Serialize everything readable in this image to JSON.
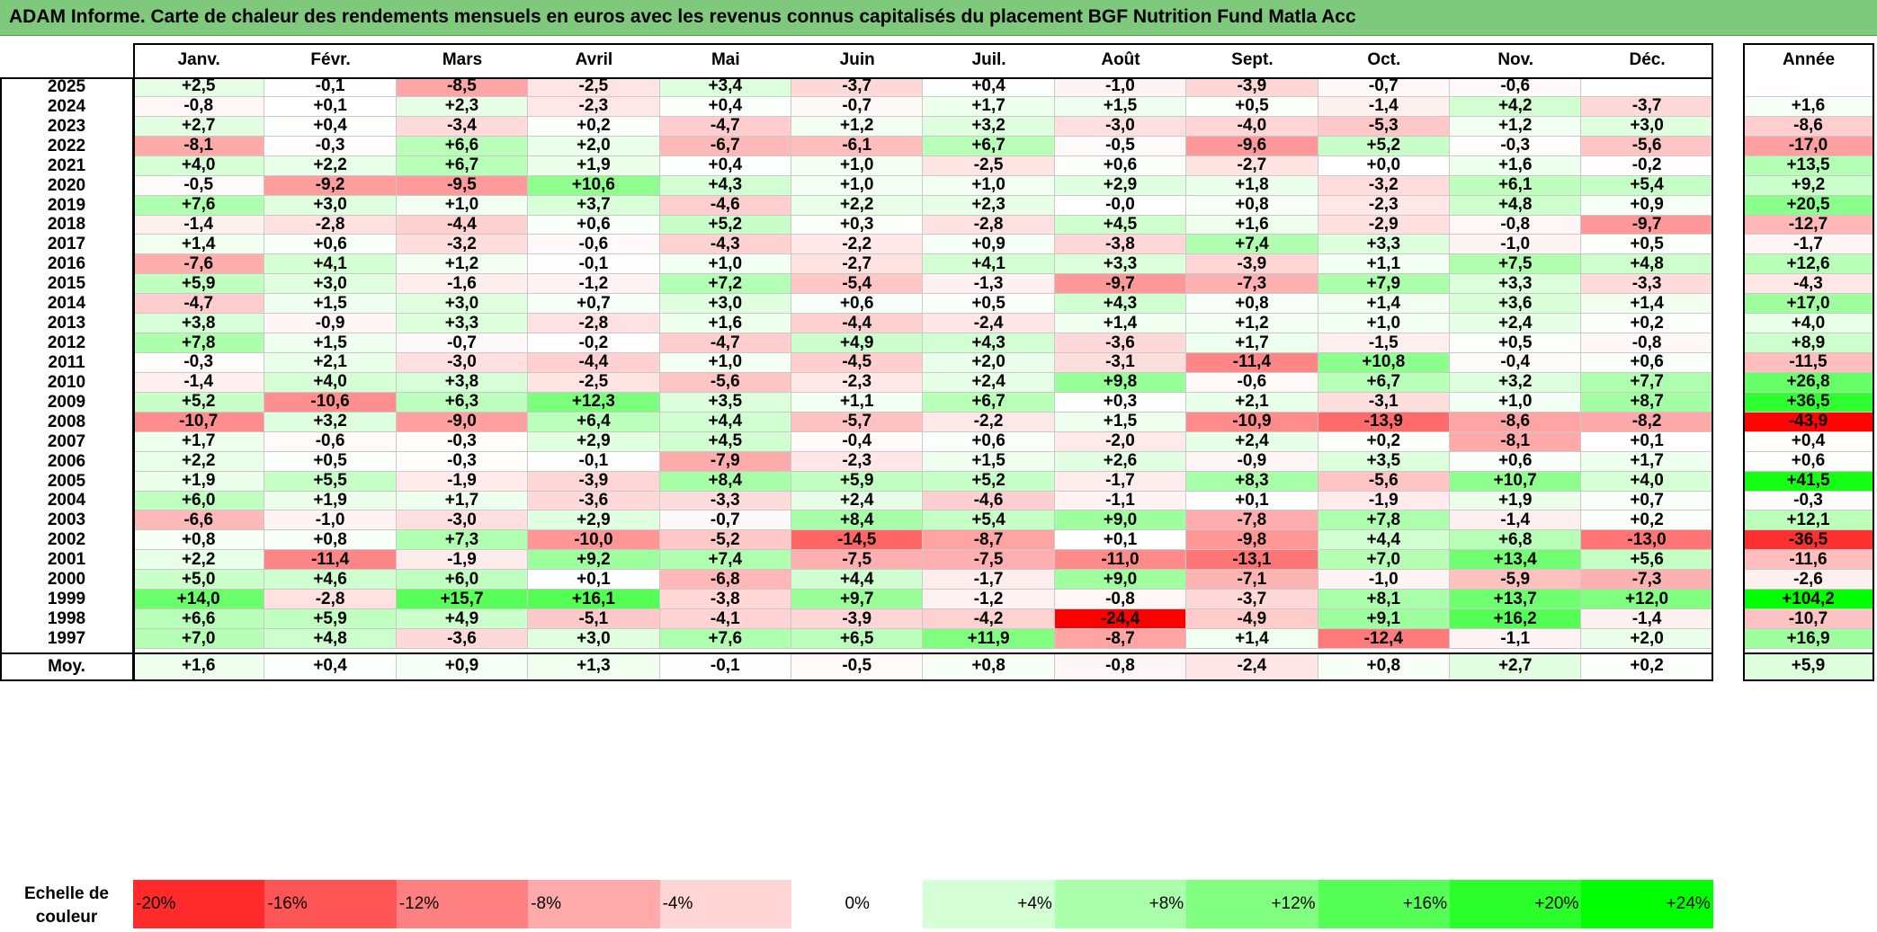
{
  "title": "ADAM Informe. Carte de chaleur des rendements mensuels en euros avec les revenus connus capitalisés du placement BGF Nutrition Fund Matla Acc",
  "columns": [
    "Janv.",
    "Févr.",
    "Mars",
    "Avril",
    "Mai",
    "Juin",
    "Juil.",
    "Août",
    "Sept.",
    "Oct.",
    "Nov.",
    "Déc."
  ],
  "annual_header": "Année",
  "average_label": "Moy.",
  "scale_label": "Echelle de couleur",
  "colors": {
    "title_bar": "#7fc97c",
    "negative_max": "#ff0000",
    "positive_max": "#00ff00",
    "neutral": "#ffffff"
  },
  "color_scale": [
    "-20%",
    "-16%",
    "-12%",
    "-8%",
    "-4%",
    "0%",
    "+4%",
    "+8%",
    "+12%",
    "+16%",
    "+20%",
    "+24%"
  ],
  "chart_data": {
    "type": "heatmap",
    "title": "ADAM Informe. Carte de chaleur des rendements mensuels en euros avec les revenus connus capitalisés du placement BGF Nutrition Fund Matla Acc",
    "rows": [
      {
        "year": "2025",
        "months": [
          "+2,5",
          "-0,1",
          "-8,5",
          "-2,5",
          "+3,4",
          "-3,7",
          "+0,4",
          "-1,0",
          "-3,9",
          "-0,7",
          "-0,6",
          ""
        ],
        "annual": ""
      },
      {
        "year": "2024",
        "months": [
          "-0,8",
          "+0,1",
          "+2,3",
          "-2,3",
          "+0,4",
          "-0,7",
          "+1,7",
          "+1,5",
          "+0,5",
          "-1,4",
          "+4,2",
          "-3,7"
        ],
        "annual": "+1,6"
      },
      {
        "year": "2023",
        "months": [
          "+2,7",
          "+0,4",
          "-3,4",
          "+0,2",
          "-4,7",
          "+1,2",
          "+3,2",
          "-3,0",
          "-4,0",
          "-5,3",
          "+1,2",
          "+3,0"
        ],
        "annual": "-8,6"
      },
      {
        "year": "2022",
        "months": [
          "-8,1",
          "-0,3",
          "+6,6",
          "+2,0",
          "-6,7",
          "-6,1",
          "+6,7",
          "-0,5",
          "-9,6",
          "+5,2",
          "-0,3",
          "-5,6"
        ],
        "annual": "-17,0"
      },
      {
        "year": "2021",
        "months": [
          "+4,0",
          "+2,2",
          "+6,7",
          "+1,9",
          "+0,4",
          "+1,0",
          "-2,5",
          "+0,6",
          "-2,7",
          "+0,0",
          "+1,6",
          "-0,2"
        ],
        "annual": "+13,5"
      },
      {
        "year": "2020",
        "months": [
          "-0,5",
          "-9,2",
          "-9,5",
          "+10,6",
          "+4,3",
          "+1,0",
          "+1,0",
          "+2,9",
          "+1,8",
          "-3,2",
          "+6,1",
          "+5,4"
        ],
        "annual": "+9,2"
      },
      {
        "year": "2019",
        "months": [
          "+7,6",
          "+3,0",
          "+1,0",
          "+3,7",
          "-4,6",
          "+2,2",
          "+2,3",
          "-0,0",
          "+0,8",
          "-2,3",
          "+4,8",
          "+0,9"
        ],
        "annual": "+20,5"
      },
      {
        "year": "2018",
        "months": [
          "-1,4",
          "-2,8",
          "-4,4",
          "+0,6",
          "+5,2",
          "+0,3",
          "-2,8",
          "+4,5",
          "+1,6",
          "-2,9",
          "-0,8",
          "-9,7"
        ],
        "annual": "-12,7"
      },
      {
        "year": "2017",
        "months": [
          "+1,4",
          "+0,6",
          "-3,2",
          "-0,6",
          "-4,3",
          "-2,2",
          "+0,9",
          "-3,8",
          "+7,4",
          "+3,3",
          "-1,0",
          "+0,5"
        ],
        "annual": "-1,7"
      },
      {
        "year": "2016",
        "months": [
          "-7,6",
          "+4,1",
          "+1,2",
          "-0,1",
          "+1,0",
          "-2,7",
          "+4,1",
          "+3,3",
          "-3,9",
          "+1,1",
          "+7,5",
          "+4,8"
        ],
        "annual": "+12,6"
      },
      {
        "year": "2015",
        "months": [
          "+5,9",
          "+3,0",
          "-1,6",
          "-1,2",
          "+7,2",
          "-5,4",
          "-1,3",
          "-9,7",
          "-7,3",
          "+7,9",
          "+3,3",
          "-3,3"
        ],
        "annual": "-4,3"
      },
      {
        "year": "2014",
        "months": [
          "-4,7",
          "+1,5",
          "+3,0",
          "+0,7",
          "+3,0",
          "+0,6",
          "+0,5",
          "+4,3",
          "+0,8",
          "+1,4",
          "+3,6",
          "+1,4"
        ],
        "annual": "+17,0"
      },
      {
        "year": "2013",
        "months": [
          "+3,8",
          "-0,9",
          "+3,3",
          "-2,8",
          "+1,6",
          "-4,4",
          "-2,4",
          "+1,4",
          "+1,2",
          "+1,0",
          "+2,4",
          "+0,2"
        ],
        "annual": "+4,0"
      },
      {
        "year": "2012",
        "months": [
          "+7,8",
          "+1,5",
          "-0,7",
          "-0,2",
          "-4,7",
          "+4,9",
          "+4,3",
          "-3,6",
          "+1,7",
          "-1,5",
          "+0,5",
          "-0,8"
        ],
        "annual": "+8,9"
      },
      {
        "year": "2011",
        "months": [
          "-0,3",
          "+2,1",
          "-3,0",
          "-4,4",
          "+1,0",
          "-4,5",
          "+2,0",
          "-3,1",
          "-11,4",
          "+10,8",
          "-0,4",
          "+0,6"
        ],
        "annual": "-11,5"
      },
      {
        "year": "2010",
        "months": [
          "-1,4",
          "+4,0",
          "+3,8",
          "-2,5",
          "-5,6",
          "-2,3",
          "+2,4",
          "+9,8",
          "-0,6",
          "+6,7",
          "+3,2",
          "+7,7"
        ],
        "annual": "+26,8"
      },
      {
        "year": "2009",
        "months": [
          "+5,2",
          "-10,6",
          "+6,3",
          "+12,3",
          "+3,5",
          "+1,1",
          "+6,7",
          "+0,3",
          "+2,1",
          "-3,1",
          "+1,0",
          "+8,7"
        ],
        "annual": "+36,5"
      },
      {
        "year": "2008",
        "months": [
          "-10,7",
          "+3,2",
          "-9,0",
          "+6,4",
          "+4,4",
          "-5,7",
          "-2,2",
          "+1,5",
          "-10,9",
          "-13,9",
          "-8,6",
          "-8,2"
        ],
        "annual": "-43,9"
      },
      {
        "year": "2007",
        "months": [
          "+1,7",
          "-0,6",
          "-0,3",
          "+2,9",
          "+4,5",
          "-0,4",
          "+0,6",
          "-2,0",
          "+2,4",
          "+0,2",
          "-8,1",
          "+0,1"
        ],
        "annual": "+0,4"
      },
      {
        "year": "2006",
        "months": [
          "+2,2",
          "+0,5",
          "-0,3",
          "-0,1",
          "-7,9",
          "-2,3",
          "+1,5",
          "+2,6",
          "-0,9",
          "+3,5",
          "+0,6",
          "+1,7"
        ],
        "annual": "+0,6"
      },
      {
        "year": "2005",
        "months": [
          "+1,9",
          "+5,5",
          "-1,9",
          "-3,9",
          "+8,4",
          "+5,9",
          "+5,2",
          "-1,7",
          "+8,3",
          "-5,6",
          "+10,7",
          "+4,0"
        ],
        "annual": "+41,5"
      },
      {
        "year": "2004",
        "months": [
          "+6,0",
          "+1,9",
          "+1,7",
          "-3,6",
          "-3,3",
          "+2,4",
          "-4,6",
          "-1,1",
          "+0,1",
          "-1,9",
          "+1,9",
          "+0,7"
        ],
        "annual": "-0,3"
      },
      {
        "year": "2003",
        "months": [
          "-6,6",
          "-1,0",
          "-3,0",
          "+2,9",
          "-0,7",
          "+8,4",
          "+5,4",
          "+9,0",
          "-7,8",
          "+7,8",
          "-1,4",
          "+0,2"
        ],
        "annual": "+12,1"
      },
      {
        "year": "2002",
        "months": [
          "+0,8",
          "+0,8",
          "+7,3",
          "-10,0",
          "-5,2",
          "-14,5",
          "-8,7",
          "+0,1",
          "-9,8",
          "+4,4",
          "+6,8",
          "-13,0"
        ],
        "annual": "-36,5"
      },
      {
        "year": "2001",
        "months": [
          "+2,2",
          "-11,4",
          "-1,9",
          "+9,2",
          "+7,4",
          "-7,5",
          "-7,5",
          "-11,0",
          "-13,1",
          "+7,0",
          "+13,4",
          "+5,6"
        ],
        "annual": "-11,6"
      },
      {
        "year": "2000",
        "months": [
          "+5,0",
          "+4,6",
          "+6,0",
          "+0,1",
          "-6,8",
          "+4,4",
          "-1,7",
          "+9,0",
          "-7,1",
          "-1,0",
          "-5,9",
          "-7,3"
        ],
        "annual": "-2,6"
      },
      {
        "year": "1999",
        "months": [
          "+14,0",
          "-2,8",
          "+15,7",
          "+16,1",
          "-3,8",
          "+9,7",
          "-1,2",
          "-0,8",
          "-3,7",
          "+8,1",
          "+13,7",
          "+12,0"
        ],
        "annual": "+104,2"
      },
      {
        "year": "1998",
        "months": [
          "+6,6",
          "+5,9",
          "+4,9",
          "-5,1",
          "-4,1",
          "-3,9",
          "-4,2",
          "-24,4",
          "-4,9",
          "+9,1",
          "+16,2",
          "-1,4"
        ],
        "annual": "-10,7"
      },
      {
        "year": "1997",
        "months": [
          "+7,0",
          "+4,8",
          "-3,6",
          "+3,0",
          "+7,6",
          "+6,5",
          "+11,9",
          "-8,7",
          "+1,4",
          "-12,4",
          "-1,1",
          "+2,0"
        ],
        "annual": "+16,9"
      }
    ],
    "average": {
      "months": [
        "+1,6",
        "+0,4",
        "+0,9",
        "+1,3",
        "-0,1",
        "-0,5",
        "+0,8",
        "-0,8",
        "-2,4",
        "+0,8",
        "+2,7",
        "+0,2"
      ],
      "annual": "+5,9"
    }
  }
}
